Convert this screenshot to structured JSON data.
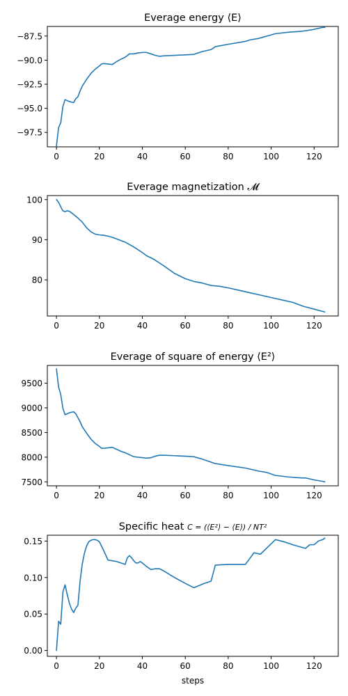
{
  "figure": {
    "xlabel": "steps"
  },
  "chart_data": [
    {
      "type": "line",
      "title": "Everage energy ⟨E⟩",
      "xlabel": "",
      "ylabel": "",
      "xlim": [
        -4.25,
        131.25
      ],
      "ylim": [
        -99.0,
        -86.5
      ],
      "xticks": [
        0,
        20,
        40,
        60,
        80,
        100,
        120
      ],
      "yticks": [
        -97.5,
        -95.0,
        -92.5,
        -90.0,
        -87.5
      ],
      "ytick_labels": [
        "−97.5",
        "−95.0",
        "−92.5",
        "−90.0",
        "−87.5"
      ],
      "color": "#1f77b4",
      "x": [
        0,
        1,
        2,
        3,
        4,
        5,
        6,
        7,
        8,
        9,
        10,
        11,
        12,
        14,
        16,
        18,
        20,
        21,
        22,
        24,
        26,
        28,
        30,
        32,
        34,
        36,
        38,
        40,
        42,
        44,
        46,
        48,
        50,
        55,
        60,
        64,
        68,
        72,
        74,
        80,
        88,
        90,
        94,
        98,
        102,
        108,
        114,
        116,
        120,
        124,
        125
      ],
      "y": [
        -98.9,
        -97.0,
        -96.5,
        -94.8,
        -94.1,
        -94.2,
        -94.3,
        -94.35,
        -94.4,
        -94.0,
        -93.8,
        -93.2,
        -92.7,
        -92.0,
        -91.4,
        -90.95,
        -90.6,
        -90.4,
        -90.35,
        -90.4,
        -90.45,
        -90.15,
        -89.9,
        -89.7,
        -89.35,
        -89.35,
        -89.25,
        -89.2,
        -89.2,
        -89.35,
        -89.5,
        -89.6,
        -89.55,
        -89.5,
        -89.45,
        -89.4,
        -89.1,
        -88.9,
        -88.6,
        -88.35,
        -88.05,
        -87.9,
        -87.75,
        -87.5,
        -87.25,
        -87.1,
        -87.0,
        -86.95,
        -86.8,
        -86.6,
        -86.6
      ]
    },
    {
      "type": "line",
      "title": "Everage magnetization 𝓜",
      "xlabel": "",
      "ylabel": "",
      "xlim": [
        -4.25,
        131.25
      ],
      "ylim": [
        71.0,
        101.0
      ],
      "xticks": [
        0,
        20,
        40,
        60,
        80,
        100,
        120
      ],
      "yticks": [
        80,
        90,
        100
      ],
      "ytick_labels": [
        "80",
        "90",
        "100"
      ],
      "color": "#1f77b4",
      "x": [
        0,
        1,
        2,
        3,
        4,
        5,
        6,
        7,
        8,
        10,
        12,
        14,
        16,
        18,
        20,
        22,
        24,
        26,
        28,
        30,
        32,
        34,
        36,
        38,
        40,
        42,
        44,
        46,
        48,
        50,
        55,
        60,
        64,
        68,
        72,
        76,
        80,
        85,
        90,
        95,
        100,
        105,
        110,
        115,
        120,
        125
      ],
      "y": [
        100.0,
        99.3,
        98.2,
        97.2,
        97.0,
        97.2,
        97.1,
        96.7,
        96.3,
        95.4,
        94.4,
        93.0,
        92.0,
        91.4,
        91.2,
        91.1,
        90.9,
        90.6,
        90.2,
        89.8,
        89.4,
        88.8,
        88.2,
        87.5,
        86.8,
        86.0,
        85.5,
        84.9,
        84.2,
        83.5,
        81.6,
        80.3,
        79.6,
        79.2,
        78.6,
        78.4,
        78.0,
        77.4,
        76.8,
        76.2,
        75.6,
        75.0,
        74.4,
        73.4,
        72.7,
        72.0
      ]
    },
    {
      "type": "line",
      "title": "Everage of square of energy ⟨E²⟩",
      "xlabel": "",
      "ylabel": "",
      "xlim": [
        -4.25,
        131.25
      ],
      "ylim": [
        7420,
        9860
      ],
      "xticks": [
        0,
        20,
        40,
        60,
        80,
        100,
        120
      ],
      "yticks": [
        7500,
        8000,
        8500,
        9000,
        9500
      ],
      "ytick_labels": [
        "7500",
        "8000",
        "8500",
        "9000",
        "9500"
      ],
      "color": "#1f77b4",
      "x": [
        0,
        1,
        2,
        3,
        4,
        5,
        6,
        7,
        8,
        9,
        10,
        11,
        12,
        14,
        16,
        18,
        20,
        21,
        22,
        24,
        26,
        28,
        30,
        32,
        34,
        36,
        38,
        40,
        42,
        44,
        46,
        48,
        50,
        55,
        60,
        64,
        68,
        72,
        74,
        80,
        88,
        90,
        94,
        98,
        102,
        108,
        114,
        116,
        120,
        124,
        125
      ],
      "y": [
        9790,
        9420,
        9270,
        8990,
        8860,
        8880,
        8900,
        8910,
        8920,
        8880,
        8800,
        8720,
        8620,
        8490,
        8370,
        8280,
        8220,
        8180,
        8180,
        8190,
        8200,
        8160,
        8120,
        8090,
        8050,
        8010,
        8000,
        7990,
        7980,
        7990,
        8020,
        8040,
        8040,
        8030,
        8020,
        8010,
        7960,
        7900,
        7870,
        7830,
        7780,
        7760,
        7720,
        7690,
        7630,
        7600,
        7580,
        7580,
        7540,
        7510,
        7500
      ]
    },
    {
      "type": "line",
      "title": "Specific heat",
      "title_prefix": "Specific heat ",
      "title_equation": "C = (⟨E²⟩ − ⟨E⟩) / NT²",
      "xlabel": "steps",
      "ylabel": "",
      "xlim": [
        -4.25,
        131.25
      ],
      "ylim": [
        -0.008,
        0.158
      ],
      "xticks": [
        0,
        20,
        40,
        60,
        80,
        100,
        120
      ],
      "yticks": [
        0.0,
        0.05,
        0.1,
        0.15
      ],
      "ytick_labels": [
        "0.00",
        "0.05",
        "0.10",
        "0.15"
      ],
      "color": "#1f77b4",
      "x": [
        0,
        1,
        2,
        3,
        4,
        5,
        6,
        7,
        8,
        9,
        10,
        11,
        12,
        13,
        14,
        15,
        16,
        17,
        18,
        19,
        20,
        21,
        22,
        24,
        26,
        28,
        30,
        32,
        33,
        34,
        35,
        36,
        37,
        38,
        39,
        40,
        42,
        44,
        46,
        48,
        50,
        55,
        60,
        64,
        68,
        72,
        74,
        80,
        88,
        92,
        95,
        102,
        106,
        110,
        116,
        118,
        120,
        122,
        124,
        125
      ],
      "y": [
        0.0,
        0.04,
        0.036,
        0.08,
        0.09,
        0.077,
        0.065,
        0.057,
        0.052,
        0.058,
        0.062,
        0.095,
        0.118,
        0.133,
        0.143,
        0.149,
        0.151,
        0.152,
        0.152,
        0.151,
        0.149,
        0.143,
        0.137,
        0.124,
        0.123,
        0.122,
        0.12,
        0.118,
        0.127,
        0.13,
        0.127,
        0.123,
        0.12,
        0.12,
        0.122,
        0.12,
        0.115,
        0.111,
        0.112,
        0.112,
        0.109,
        0.1,
        0.092,
        0.086,
        0.091,
        0.095,
        0.117,
        0.118,
        0.118,
        0.134,
        0.132,
        0.152,
        0.149,
        0.145,
        0.14,
        0.145,
        0.145,
        0.15,
        0.152,
        0.154
      ]
    }
  ]
}
